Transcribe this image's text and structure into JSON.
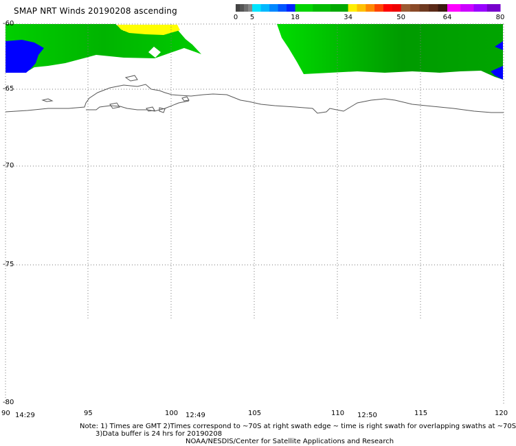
{
  "title": "SMAP NRT Winds 20190208 ascending",
  "colorbar": {
    "labels": [
      "0",
      "5",
      "18",
      "34",
      "50",
      "64",
      "80"
    ],
    "segments": [
      {
        "from": 0,
        "to": 5,
        "colors": [
          "#444444",
          "#555555",
          "#6e6e6e",
          "#888888"
        ]
      },
      {
        "from": 5,
        "to": 18,
        "colors": [
          "#00e5ff",
          "#00b8ff",
          "#0088ff",
          "#0055ff",
          "#0022ff"
        ]
      },
      {
        "from": 18,
        "to": 34,
        "colors": [
          "#00d400",
          "#00bb00",
          "#00a800"
        ]
      },
      {
        "from": 34,
        "to": 50,
        "colors": [
          "#ffee00",
          "#ffc000",
          "#ff8800",
          "#ff4400",
          "#ff0000",
          "#ee0000"
        ]
      },
      {
        "from": 50,
        "to": 64,
        "colors": [
          "#9b5a32",
          "#8a4a28",
          "#6e3a20",
          "#5a2a18",
          "#3c1a10"
        ]
      },
      {
        "from": 64,
        "to": 80,
        "colors": [
          "#ff00ff",
          "#cc00ff",
          "#9900ff",
          "#7700cc"
        ]
      }
    ]
  },
  "axes": {
    "lat_labels": [
      "-60",
      "-65",
      "-70",
      "-75",
      "-80"
    ],
    "lon_labels": [
      "90",
      "95",
      "100",
      "105",
      "110",
      "115",
      "120"
    ],
    "time_labels": [
      "14:29",
      "12:49",
      "12:50"
    ]
  },
  "notes": {
    "line1": "Note: 1) Times are GMT 2)Times correspond to ~70S at right swath edge ~ time is right swath for overlapping swaths at ~70S",
    "line2": "3)Data buffer is 24 hrs for 20190208",
    "line3": "NOAA/NESDIS/Center for Satellite Applications and Research"
  },
  "colors": {
    "green_light": "#00d400",
    "green_dark": "#009a00",
    "blue": "#0000ff",
    "yellow": "#ffff00",
    "coast": "#555555",
    "grid": "#888888"
  }
}
